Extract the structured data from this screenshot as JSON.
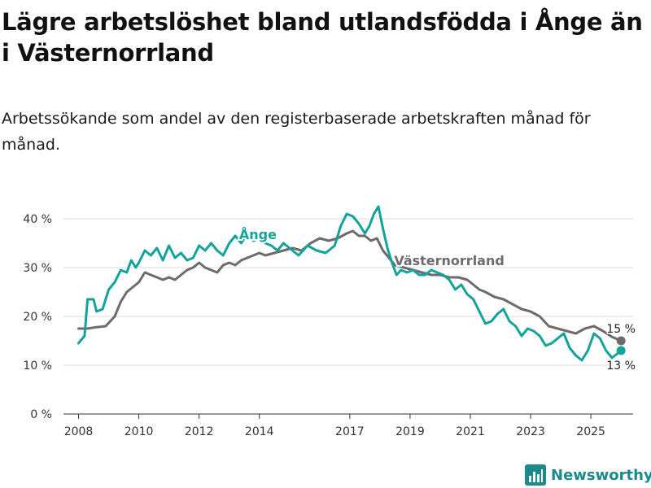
{
  "title": "Lägre arbetslöshet bland utlandsfödda i Ånge än i Västernorrland",
  "subtitle": "Arbetssökande som andel av den registerbaserade arbetskraften månad för månad.",
  "brand": "Newsworthy",
  "colors": {
    "ange": "#12a39a",
    "vasternorrland": "#6e6a6e",
    "grid": "#dddddd",
    "axis": "#333333"
  },
  "chart_data": {
    "type": "line",
    "title": "Lägre arbetslöshet bland utlandsfödda i Ånge än i Västernorrland",
    "xlabel": "",
    "ylabel": "",
    "xlim": [
      2007.5,
      2026.4
    ],
    "ylim": [
      0,
      44
    ],
    "y_ticks": [
      0,
      10,
      20,
      30,
      40
    ],
    "y_tick_labels": [
      "0 %",
      "10 %",
      "20 %",
      "30 %",
      "40 %"
    ],
    "x_ticks": [
      2008,
      2010,
      2012,
      2014,
      2017,
      2019,
      2021,
      2023,
      2025
    ],
    "x_tick_labels": [
      "2008",
      "2010",
      "2012",
      "2014",
      "2017",
      "2019",
      "2021",
      "2023",
      "2025"
    ],
    "series": [
      {
        "name": "Ånge",
        "label": "Ånge",
        "end_label": "13 %",
        "end_value": 13,
        "points": [
          [
            2008.0,
            14.5
          ],
          [
            2008.2,
            16
          ],
          [
            2008.3,
            23.5
          ],
          [
            2008.5,
            23.5
          ],
          [
            2008.6,
            21
          ],
          [
            2008.8,
            21.5
          ],
          [
            2009.0,
            25.5
          ],
          [
            2009.2,
            27
          ],
          [
            2009.4,
            29.5
          ],
          [
            2009.6,
            29
          ],
          [
            2009.75,
            31.5
          ],
          [
            2009.9,
            30
          ],
          [
            2010.0,
            31
          ],
          [
            2010.2,
            33.5
          ],
          [
            2010.4,
            32.5
          ],
          [
            2010.6,
            34
          ],
          [
            2010.8,
            31.5
          ],
          [
            2011.0,
            34.5
          ],
          [
            2011.2,
            32
          ],
          [
            2011.4,
            33
          ],
          [
            2011.6,
            31.5
          ],
          [
            2011.8,
            32
          ],
          [
            2012.0,
            34.5
          ],
          [
            2012.2,
            33.5
          ],
          [
            2012.4,
            35
          ],
          [
            2012.6,
            33.5
          ],
          [
            2012.8,
            32.5
          ],
          [
            2013.0,
            35
          ],
          [
            2013.2,
            36.5
          ],
          [
            2013.4,
            35
          ],
          [
            2013.6,
            37
          ],
          [
            2013.8,
            35.5
          ],
          [
            2014.0,
            36
          ],
          [
            2014.2,
            35
          ],
          [
            2014.4,
            34.5
          ],
          [
            2014.6,
            33.5
          ],
          [
            2014.8,
            35
          ],
          [
            2015.0,
            34
          ],
          [
            2015.3,
            32.5
          ],
          [
            2015.6,
            34.5
          ],
          [
            2015.9,
            33.5
          ],
          [
            2016.2,
            33
          ],
          [
            2016.5,
            34.5
          ],
          [
            2016.7,
            38.5
          ],
          [
            2016.9,
            41
          ],
          [
            2017.1,
            40.5
          ],
          [
            2017.3,
            39
          ],
          [
            2017.5,
            37
          ],
          [
            2017.65,
            38.5
          ],
          [
            2017.8,
            41
          ],
          [
            2017.95,
            42.5
          ],
          [
            2018.1,
            38
          ],
          [
            2018.25,
            34
          ],
          [
            2018.4,
            31
          ],
          [
            2018.55,
            28.5
          ],
          [
            2018.7,
            29.5
          ],
          [
            2018.9,
            29
          ],
          [
            2019.1,
            29.5
          ],
          [
            2019.3,
            28.5
          ],
          [
            2019.5,
            28.5
          ],
          [
            2019.7,
            29.5
          ],
          [
            2019.9,
            29
          ],
          [
            2020.1,
            28.5
          ],
          [
            2020.3,
            27.5
          ],
          [
            2020.5,
            25.5
          ],
          [
            2020.7,
            26.5
          ],
          [
            2020.9,
            24.5
          ],
          [
            2021.1,
            23.5
          ],
          [
            2021.3,
            21
          ],
          [
            2021.5,
            18.5
          ],
          [
            2021.7,
            19
          ],
          [
            2021.9,
            20.5
          ],
          [
            2022.1,
            21.5
          ],
          [
            2022.3,
            19
          ],
          [
            2022.5,
            18
          ],
          [
            2022.7,
            16
          ],
          [
            2022.9,
            17.5
          ],
          [
            2023.1,
            17
          ],
          [
            2023.3,
            16
          ],
          [
            2023.5,
            14
          ],
          [
            2023.7,
            14.5
          ],
          [
            2023.9,
            15.5
          ],
          [
            2024.1,
            16.5
          ],
          [
            2024.3,
            13.5
          ],
          [
            2024.5,
            12
          ],
          [
            2024.7,
            11
          ],
          [
            2024.9,
            13
          ],
          [
            2025.1,
            16.5
          ],
          [
            2025.3,
            15.5
          ],
          [
            2025.5,
            13
          ],
          [
            2025.7,
            11.5
          ],
          [
            2025.9,
            12.5
          ],
          [
            2026.0,
            13
          ]
        ]
      },
      {
        "name": "Västernorrland",
        "label": "Västernorrland",
        "end_label": "15 %",
        "end_value": 15,
        "points": [
          [
            2008.0,
            17.5
          ],
          [
            2008.3,
            17.5
          ],
          [
            2008.6,
            17.8
          ],
          [
            2008.9,
            18
          ],
          [
            2009.2,
            20
          ],
          [
            2009.4,
            23
          ],
          [
            2009.6,
            25
          ],
          [
            2009.8,
            26
          ],
          [
            2010.0,
            27
          ],
          [
            2010.2,
            29
          ],
          [
            2010.4,
            28.5
          ],
          [
            2010.6,
            28
          ],
          [
            2010.8,
            27.5
          ],
          [
            2011.0,
            28
          ],
          [
            2011.2,
            27.5
          ],
          [
            2011.4,
            28.5
          ],
          [
            2011.6,
            29.5
          ],
          [
            2011.8,
            30
          ],
          [
            2012.0,
            31
          ],
          [
            2012.2,
            30
          ],
          [
            2012.4,
            29.5
          ],
          [
            2012.6,
            29
          ],
          [
            2012.8,
            30.5
          ],
          [
            2013.0,
            31
          ],
          [
            2013.2,
            30.5
          ],
          [
            2013.4,
            31.5
          ],
          [
            2013.6,
            32
          ],
          [
            2013.8,
            32.5
          ],
          [
            2014.0,
            33
          ],
          [
            2014.2,
            32.5
          ],
          [
            2014.5,
            33
          ],
          [
            2014.8,
            33.5
          ],
          [
            2015.1,
            34
          ],
          [
            2015.4,
            33.5
          ],
          [
            2015.7,
            35
          ],
          [
            2016.0,
            36
          ],
          [
            2016.3,
            35.5
          ],
          [
            2016.6,
            36
          ],
          [
            2016.9,
            37
          ],
          [
            2017.1,
            37.5
          ],
          [
            2017.3,
            36.5
          ],
          [
            2017.5,
            36.5
          ],
          [
            2017.7,
            35.5
          ],
          [
            2017.9,
            36
          ],
          [
            2018.1,
            33.5
          ],
          [
            2018.3,
            32
          ],
          [
            2018.5,
            30.5
          ],
          [
            2018.8,
            30
          ],
          [
            2019.1,
            29.5
          ],
          [
            2019.4,
            29
          ],
          [
            2019.7,
            28.5
          ],
          [
            2020.0,
            28.5
          ],
          [
            2020.3,
            28
          ],
          [
            2020.6,
            28
          ],
          [
            2020.9,
            27.5
          ],
          [
            2021.1,
            26.5
          ],
          [
            2021.3,
            25.5
          ],
          [
            2021.5,
            25
          ],
          [
            2021.8,
            24
          ],
          [
            2022.1,
            23.5
          ],
          [
            2022.4,
            22.5
          ],
          [
            2022.7,
            21.5
          ],
          [
            2023.0,
            21
          ],
          [
            2023.3,
            20
          ],
          [
            2023.6,
            18
          ],
          [
            2023.9,
            17.5
          ],
          [
            2024.2,
            17
          ],
          [
            2024.5,
            16.5
          ],
          [
            2024.8,
            17.5
          ],
          [
            2025.1,
            18
          ],
          [
            2025.4,
            17
          ],
          [
            2025.7,
            15.8
          ],
          [
            2026.0,
            15
          ]
        ]
      }
    ]
  }
}
